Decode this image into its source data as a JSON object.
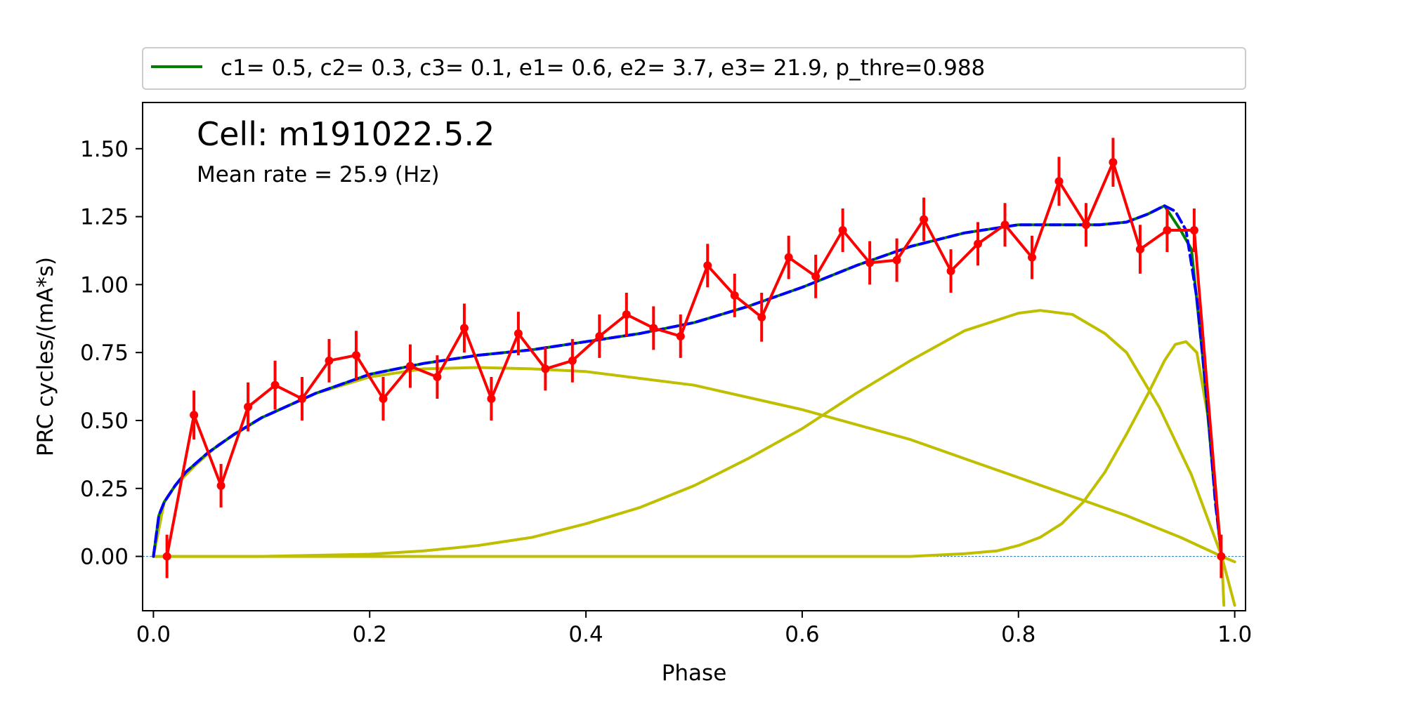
{
  "chart_data": {
    "type": "line",
    "xlabel": "Phase",
    "ylabel": "PRC  cycles/(mA*s)",
    "xlim": [
      -0.01,
      1.01
    ],
    "ylim": [
      -0.2,
      1.67
    ],
    "xticks": [
      0.0,
      0.2,
      0.4,
      0.6,
      0.8,
      1.0
    ],
    "xtick_labels": [
      "0.0",
      "0.2",
      "0.4",
      "0.6",
      "0.8",
      "1.0"
    ],
    "yticks": [
      0.0,
      0.25,
      0.5,
      0.75,
      1.0,
      1.25,
      1.5
    ],
    "ytick_labels": [
      "0.00",
      "0.25",
      "0.50",
      "0.75",
      "1.00",
      "1.25",
      "1.50"
    ],
    "grid": false,
    "legend": {
      "placement": "above-plot",
      "label": "c1=  0.5, c2=  0.3, c3=  0.1, e1=  0.6, e2=  3.7, e3= 21.9, p_thre=0.988"
    },
    "annotations": {
      "cell": "Cell: m191022.5.2",
      "rate": "Mean rate = 25.9 (Hz)"
    },
    "colors": {
      "data": "#ff0000",
      "fit": "#008000",
      "fit_dashed": "#0000ff",
      "components": "#bfbf00",
      "zero_line": "#1f77b4"
    },
    "parameters": {
      "c1": 0.5,
      "c2": 0.3,
      "c3": 0.1,
      "e1": 0.6,
      "e2": 3.7,
      "e3": 21.9,
      "p_thre": 0.988
    },
    "series": [
      {
        "role": "measured PRC with error bars",
        "x": [
          0.0125,
          0.0375,
          0.0625,
          0.0875,
          0.1125,
          0.1375,
          0.1625,
          0.1875,
          0.2125,
          0.2375,
          0.2625,
          0.2875,
          0.3125,
          0.3375,
          0.3625,
          0.3875,
          0.4125,
          0.4375,
          0.4625,
          0.4875,
          0.5125,
          0.5375,
          0.5625,
          0.5875,
          0.6125,
          0.6375,
          0.6625,
          0.6875,
          0.7125,
          0.7375,
          0.7625,
          0.7875,
          0.8125,
          0.8375,
          0.8625,
          0.8875,
          0.9125,
          0.9375,
          0.9625,
          0.9875
        ],
        "y": [
          0.0,
          0.52,
          0.26,
          0.55,
          0.63,
          0.58,
          0.72,
          0.74,
          0.58,
          0.7,
          0.66,
          0.84,
          0.58,
          0.82,
          0.69,
          0.72,
          0.81,
          0.89,
          0.84,
          0.81,
          1.07,
          0.96,
          0.88,
          1.1,
          1.03,
          1.2,
          1.08,
          1.09,
          1.24,
          1.05,
          1.15,
          1.22,
          1.1,
          1.38,
          1.22,
          1.45,
          1.13,
          1.2,
          1.2,
          0.0
        ],
        "yerr": [
          0.08,
          0.09,
          0.08,
          0.09,
          0.09,
          0.08,
          0.08,
          0.09,
          0.08,
          0.08,
          0.08,
          0.09,
          0.08,
          0.08,
          0.08,
          0.08,
          0.08,
          0.08,
          0.08,
          0.08,
          0.08,
          0.08,
          0.09,
          0.08,
          0.08,
          0.08,
          0.08,
          0.08,
          0.08,
          0.08,
          0.08,
          0.08,
          0.08,
          0.09,
          0.08,
          0.09,
          0.09,
          0.08,
          0.08,
          0.08
        ]
      },
      {
        "role": "fit (solid)",
        "x": [
          0.0,
          0.005,
          0.01,
          0.02,
          0.03,
          0.05,
          0.075,
          0.1,
          0.15,
          0.2,
          0.25,
          0.3,
          0.35,
          0.4,
          0.45,
          0.5,
          0.55,
          0.6,
          0.65,
          0.7,
          0.75,
          0.8,
          0.85,
          0.875,
          0.9,
          0.92,
          0.935,
          0.95,
          0.96,
          0.97,
          0.98,
          0.985,
          0.988
        ],
        "y": [
          0.0,
          0.15,
          0.2,
          0.26,
          0.31,
          0.38,
          0.45,
          0.51,
          0.6,
          0.67,
          0.71,
          0.74,
          0.76,
          0.79,
          0.82,
          0.86,
          0.92,
          0.99,
          1.07,
          1.14,
          1.19,
          1.22,
          1.22,
          1.22,
          1.23,
          1.26,
          1.29,
          1.2,
          1.13,
          0.75,
          0.3,
          0.1,
          0.0
        ]
      },
      {
        "role": "fit (dashed)",
        "x": [
          0.0,
          0.005,
          0.01,
          0.02,
          0.03,
          0.05,
          0.075,
          0.1,
          0.15,
          0.2,
          0.25,
          0.3,
          0.35,
          0.4,
          0.45,
          0.5,
          0.55,
          0.6,
          0.65,
          0.7,
          0.75,
          0.8,
          0.85,
          0.875,
          0.9,
          0.92,
          0.935,
          0.945,
          0.955,
          0.965,
          0.975,
          0.982,
          0.988
        ],
        "y": [
          0.0,
          0.15,
          0.2,
          0.26,
          0.31,
          0.38,
          0.45,
          0.51,
          0.6,
          0.67,
          0.71,
          0.74,
          0.76,
          0.79,
          0.82,
          0.86,
          0.92,
          0.99,
          1.07,
          1.14,
          1.19,
          1.22,
          1.22,
          1.22,
          1.23,
          1.26,
          1.29,
          1.27,
          1.2,
          0.95,
          0.55,
          0.2,
          0.0
        ]
      },
      {
        "role": "component 1",
        "x": [
          0.0,
          0.01,
          0.02,
          0.04,
          0.06,
          0.1,
          0.15,
          0.2,
          0.25,
          0.3,
          0.35,
          0.4,
          0.5,
          0.6,
          0.7,
          0.8,
          0.9,
          0.95,
          0.988,
          1.0
        ],
        "y": [
          0.0,
          0.2,
          0.26,
          0.34,
          0.41,
          0.51,
          0.6,
          0.66,
          0.69,
          0.695,
          0.69,
          0.68,
          0.63,
          0.54,
          0.43,
          0.29,
          0.15,
          0.07,
          0.0,
          -0.02
        ]
      },
      {
        "role": "component 2",
        "x": [
          0.0,
          0.1,
          0.2,
          0.25,
          0.3,
          0.35,
          0.4,
          0.45,
          0.5,
          0.55,
          0.6,
          0.65,
          0.7,
          0.75,
          0.8,
          0.82,
          0.85,
          0.88,
          0.9,
          0.93,
          0.96,
          0.988,
          1.0
        ],
        "y": [
          0.0,
          0.0,
          0.008,
          0.02,
          0.04,
          0.07,
          0.12,
          0.18,
          0.26,
          0.36,
          0.47,
          0.6,
          0.72,
          0.83,
          0.895,
          0.905,
          0.89,
          0.82,
          0.75,
          0.55,
          0.3,
          0.0,
          -0.18
        ]
      },
      {
        "role": "component 3",
        "x": [
          0.0,
          0.6,
          0.7,
          0.75,
          0.78,
          0.8,
          0.82,
          0.84,
          0.86,
          0.88,
          0.9,
          0.92,
          0.935,
          0.945,
          0.955,
          0.965,
          0.975,
          0.98,
          0.985,
          0.988,
          0.99
        ],
        "y": [
          0.0,
          0.0,
          0.0,
          0.01,
          0.02,
          0.04,
          0.07,
          0.12,
          0.2,
          0.31,
          0.45,
          0.6,
          0.72,
          0.78,
          0.79,
          0.75,
          0.52,
          0.35,
          0.12,
          0.0,
          -0.18
        ]
      }
    ]
  }
}
